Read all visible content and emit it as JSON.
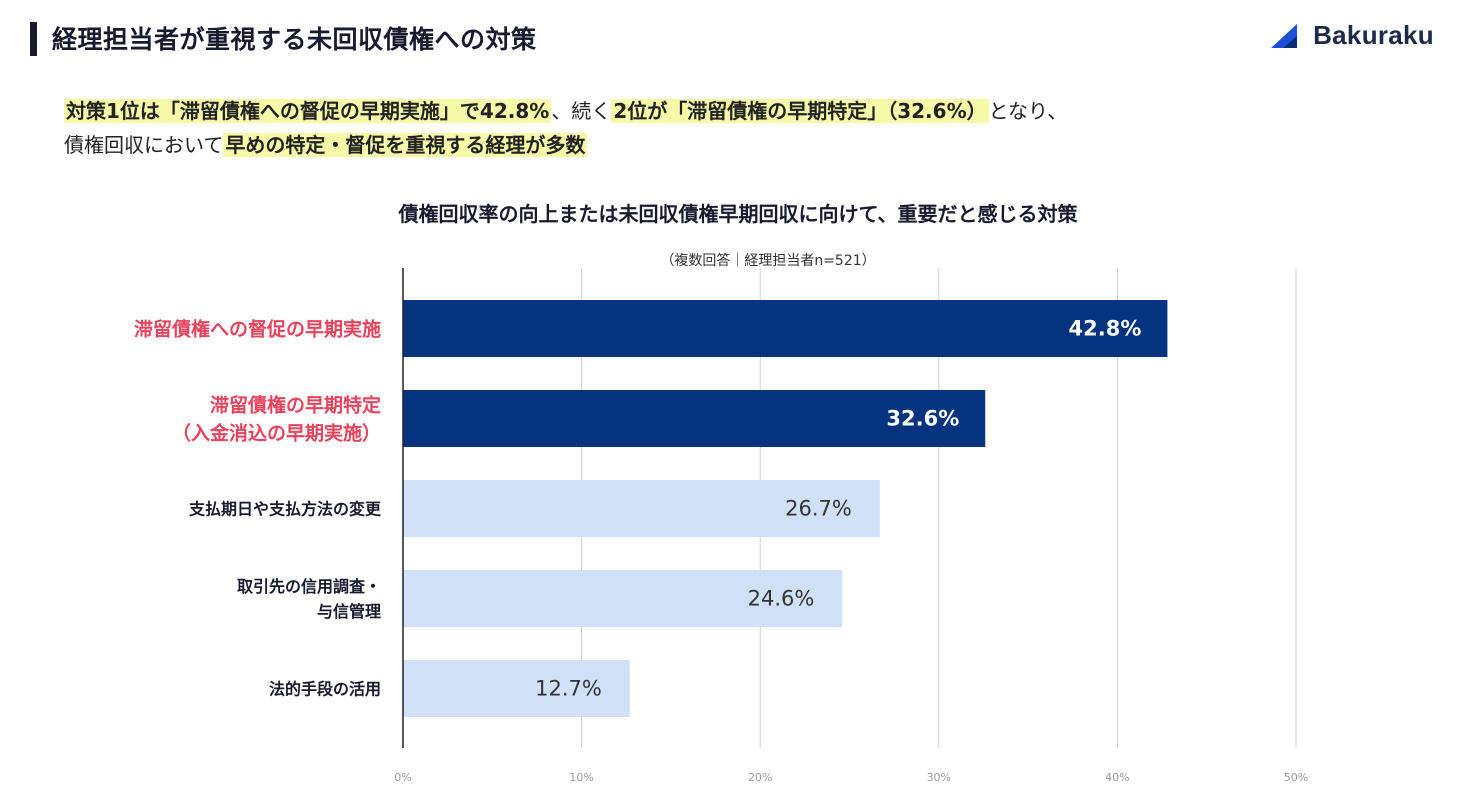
{
  "header": {
    "title": "経理担当者が重視する未回収債権への対策",
    "logo_text": "Bakuraku"
  },
  "summary": {
    "line1": [
      {
        "text": "対策1位は「滞留債権への督促の早期実施」で42.8%",
        "highlight": true
      },
      {
        "text": "、続く",
        "highlight": false
      },
      {
        "text": "2位が「滞留債権の早期特定」（32.6%）",
        "highlight": true
      },
      {
        "text": "となり、",
        "highlight": false
      }
    ],
    "line2": [
      {
        "text": "債権回収において",
        "highlight": false
      },
      {
        "text": "早めの特定・督促を重視する経理が多数",
        "highlight": true
      }
    ]
  },
  "colors": {
    "top_bar": "#05337f",
    "other_bar": "#cfe0f7",
    "top_label": "#e8445e",
    "other_label": "#1a1a2e",
    "grid": "#d0d0d0",
    "axis": "#222222"
  },
  "chart_data": {
    "type": "bar",
    "orientation": "horizontal",
    "title": "債権回収率の向上または未回収債権早期回収に向けて、重要だと感じる対策",
    "subtitle": "（複数回答｜経理担当者n=521）",
    "categories": [
      [
        "滞留債権への督促の早期実施"
      ],
      [
        "滞留債権の早期特定",
        "（入金消込の早期実施）"
      ],
      [
        "支払期日や支払方法の変更"
      ],
      [
        "取引先の信用調査・",
        "与信管理"
      ],
      [
        "法的手段の活用"
      ]
    ],
    "values": [
      42.8,
      32.6,
      26.7,
      24.6,
      12.7
    ],
    "value_labels": [
      "42.8%",
      "32.6%",
      "26.7%",
      "24.6%",
      "12.7%"
    ],
    "highlighted": [
      true,
      true,
      false,
      false,
      false
    ],
    "xlim": [
      0,
      50
    ],
    "xticks": [
      0,
      10,
      20,
      30,
      40,
      50
    ],
    "xtick_labels": [
      "0%",
      "10%",
      "20%",
      "30%",
      "40%",
      "50%"
    ],
    "grid": true
  }
}
